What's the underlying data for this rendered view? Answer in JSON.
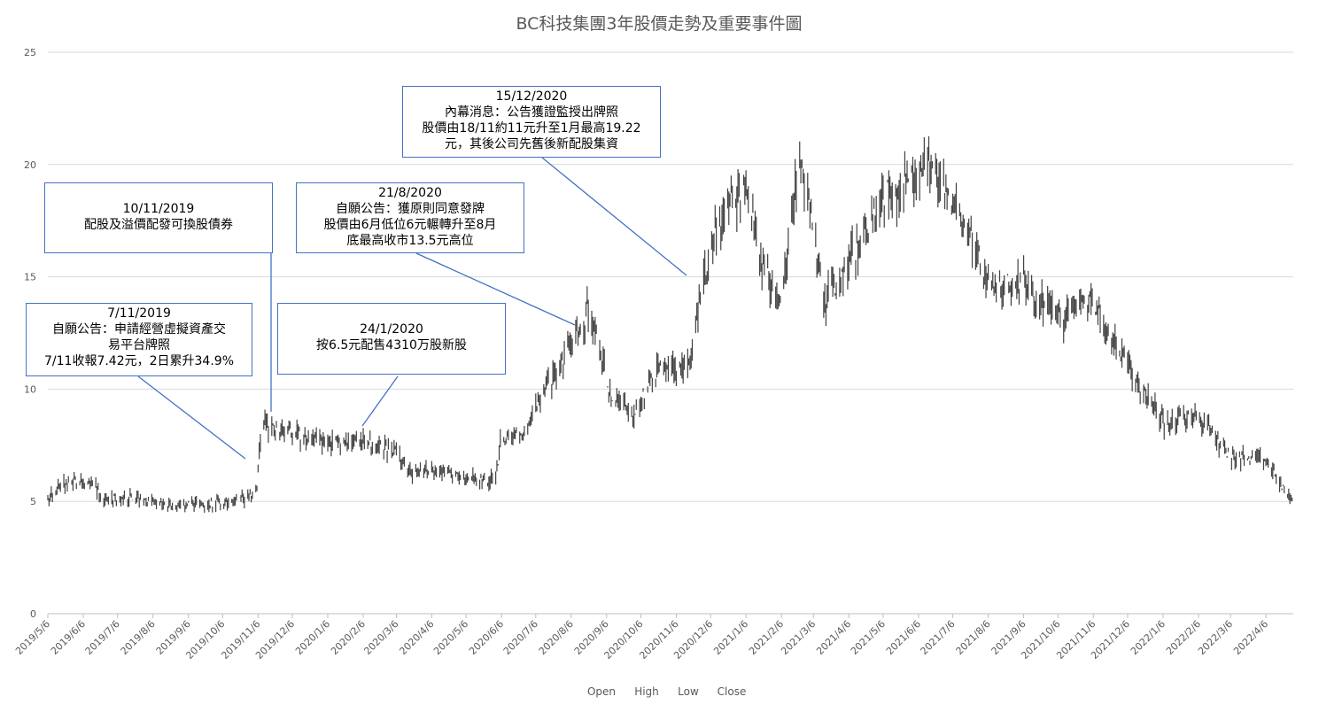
{
  "chart_data": {
    "type": "candlestick",
    "title": "BC科技集團3年股價走勢及重要事件圖",
    "xlabel": "",
    "ylabel": "",
    "ylim": [
      0,
      25
    ],
    "yticks": [
      0,
      5,
      10,
      15,
      20,
      25
    ],
    "grid": true,
    "x_range": [
      "2019-05-06",
      "2022-04-30"
    ],
    "xtick_labels": [
      "2019/5/6",
      "2019/6/6",
      "2019/7/6",
      "2019/8/6",
      "2019/9/6",
      "2019/10/6",
      "2019/11/6",
      "2019/12/6",
      "2020/1/6",
      "2020/2/6",
      "2020/3/6",
      "2020/4/6",
      "2020/5/6",
      "2020/6/6",
      "2020/7/6",
      "2020/8/6",
      "2020/9/6",
      "2020/10/6",
      "2020/11/6",
      "2020/12/6",
      "2021/1/6",
      "2021/2/6",
      "2021/3/6",
      "2021/4/6",
      "2021/5/6",
      "2021/6/6",
      "2021/7/6",
      "2021/8/6",
      "2021/9/6",
      "2021/10/6",
      "2021/11/6",
      "2021/12/6",
      "2022/1/6",
      "2022/2/6",
      "2022/3/6",
      "2022/4/6"
    ],
    "legend_position": "bottom",
    "legend": [
      "Open",
      "High",
      "Low",
      "Close"
    ],
    "close_trend": [
      [
        "2019-05-06",
        5.1
      ],
      [
        "2019-05-20",
        5.8
      ],
      [
        "2019-06-15",
        5.8
      ],
      [
        "2019-06-22",
        5.1
      ],
      [
        "2019-07-20",
        5.1
      ],
      [
        "2019-08-10",
        4.9
      ],
      [
        "2019-08-20",
        4.8
      ],
      [
        "2019-09-20",
        4.9
      ],
      [
        "2019-10-15",
        5.0
      ],
      [
        "2019-11-01",
        5.3
      ],
      [
        "2019-11-05",
        5.5
      ],
      [
        "2019-11-07",
        7.4
      ],
      [
        "2019-11-11",
        8.5
      ],
      [
        "2019-12-01",
        8.1
      ],
      [
        "2020-01-06",
        7.7
      ],
      [
        "2020-02-10",
        7.6
      ],
      [
        "2020-03-06",
        7.2
      ],
      [
        "2020-03-20",
        6.3
      ],
      [
        "2020-04-10",
        6.3
      ],
      [
        "2020-05-06",
        6.1
      ],
      [
        "2020-06-01",
        5.9
      ],
      [
        "2020-06-06",
        7.9
      ],
      [
        "2020-06-25",
        8.0
      ],
      [
        "2020-07-10",
        9.5
      ],
      [
        "2020-08-06",
        12.0
      ],
      [
        "2020-08-21",
        13.5
      ],
      [
        "2020-09-10",
        9.7
      ],
      [
        "2020-10-01",
        9.0
      ],
      [
        "2020-10-20",
        10.8
      ],
      [
        "2020-11-18",
        11.0
      ],
      [
        "2020-12-01",
        15.0
      ],
      [
        "2020-12-15",
        17.5
      ],
      [
        "2021-01-06",
        19.2
      ],
      [
        "2021-01-20",
        15.8
      ],
      [
        "2021-02-06",
        13.5
      ],
      [
        "2021-02-18",
        19.0
      ],
      [
        "2021-02-24",
        20.5
      ],
      [
        "2021-03-06",
        17.0
      ],
      [
        "2021-03-15",
        14.0
      ],
      [
        "2021-04-06",
        15.5
      ],
      [
        "2021-05-06",
        18.5
      ],
      [
        "2021-06-06",
        19.5
      ],
      [
        "2021-06-15",
        20.0
      ],
      [
        "2021-07-06",
        18.0
      ],
      [
        "2021-07-25",
        16.5
      ],
      [
        "2021-08-06",
        14.5
      ],
      [
        "2021-09-06",
        14.8
      ],
      [
        "2021-10-06",
        13.0
      ],
      [
        "2021-11-06",
        14.0
      ],
      [
        "2021-12-06",
        11.0
      ],
      [
        "2022-01-06",
        8.5
      ],
      [
        "2022-02-06",
        8.8
      ],
      [
        "2022-03-06",
        7.0
      ],
      [
        "2022-04-06",
        6.8
      ],
      [
        "2022-04-30",
        4.9
      ]
    ],
    "annotations": [
      {
        "lines": [
          "7/11/2019",
          "自願公告：申請經營虛擬資產交",
          "易平台牌照",
          "7/11收報7.42元，2日累升34.9%"
        ]
      },
      {
        "lines": [
          "10/11/2019",
          "配股及溢價配發可換股債券"
        ]
      },
      {
        "lines": [
          "24/1/2020",
          "按6.5元配售4310万股新股"
        ]
      },
      {
        "lines": [
          "21/8/2020",
          "自願公告：獲原則同意發牌",
          "股價由6月低位6元輾轉升至8月",
          "底最高收市13.5元高位"
        ]
      },
      {
        "lines": [
          "15/12/2020",
          "內幕消息：公告獲證監授出牌照",
          "股價由18/11約11元升至1月最高19.22",
          "元，其後公司先舊後新配股集資"
        ]
      }
    ]
  }
}
